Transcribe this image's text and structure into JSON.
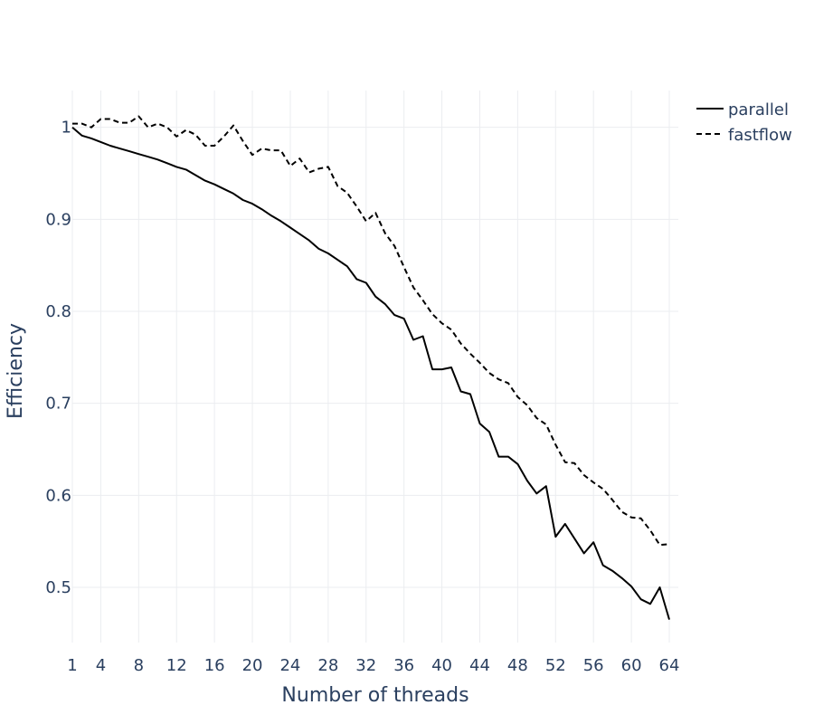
{
  "chart_data": {
    "type": "line",
    "xlabel": "Number of threads",
    "ylabel": "Efficiency",
    "x_tick_labels": [
      "1",
      "4",
      "8",
      "12",
      "16",
      "20",
      "24",
      "28",
      "32",
      "36",
      "40",
      "44",
      "48",
      "52",
      "56",
      "60",
      "64"
    ],
    "y_tick_labels": [
      "0.5",
      "0.6",
      "0.7",
      "0.8",
      "0.9",
      "1"
    ],
    "xlim": [
      1,
      64
    ],
    "ylim": [
      0.44,
      1.04
    ],
    "grid": true,
    "legend_position": "top-right",
    "series_color": "#000000",
    "x": [
      1,
      2,
      3,
      4,
      5,
      6,
      7,
      8,
      9,
      10,
      11,
      12,
      13,
      14,
      15,
      16,
      17,
      18,
      19,
      20,
      21,
      22,
      23,
      24,
      25,
      26,
      27,
      28,
      29,
      30,
      31,
      32,
      33,
      34,
      35,
      36,
      37,
      38,
      39,
      40,
      41,
      42,
      43,
      44,
      45,
      46,
      47,
      48,
      49,
      50,
      51,
      52,
      53,
      54,
      55,
      56,
      57,
      58,
      59,
      60,
      61,
      62,
      63,
      64
    ],
    "series": [
      {
        "name": "parallel",
        "dash": "solid",
        "values": [
          1.0,
          0.991,
          0.988,
          0.984,
          0.98,
          0.977,
          0.974,
          0.971,
          0.968,
          0.965,
          0.961,
          0.957,
          0.954,
          0.948,
          0.942,
          0.938,
          0.933,
          0.928,
          0.921,
          0.917,
          0.911,
          0.904,
          0.898,
          0.891,
          0.884,
          0.877,
          0.868,
          0.863,
          0.856,
          0.849,
          0.835,
          0.831,
          0.816,
          0.808,
          0.796,
          0.792,
          0.769,
          0.773,
          0.737,
          0.737,
          0.739,
          0.713,
          0.71,
          0.678,
          0.669,
          0.642,
          0.642,
          0.634,
          0.616,
          0.602,
          0.61,
          0.555,
          0.569,
          0.553,
          0.537,
          0.549,
          0.524,
          0.518,
          0.51,
          0.501,
          0.487,
          0.482,
          0.5,
          0.465
        ]
      },
      {
        "name": "fastflow",
        "dash": "dashed",
        "values": [
          1.004,
          1.004,
          1.0,
          1.009,
          1.009,
          1.005,
          1.005,
          1.012,
          1.0,
          1.004,
          1.0,
          0.99,
          0.997,
          0.992,
          0.98,
          0.98,
          0.99,
          1.002,
          0.985,
          0.97,
          0.977,
          0.975,
          0.975,
          0.958,
          0.966,
          0.951,
          0.955,
          0.957,
          0.936,
          0.929,
          0.914,
          0.898,
          0.907,
          0.885,
          0.871,
          0.848,
          0.826,
          0.812,
          0.797,
          0.787,
          0.78,
          0.765,
          0.754,
          0.744,
          0.733,
          0.726,
          0.722,
          0.707,
          0.698,
          0.684,
          0.677,
          0.655,
          0.636,
          0.635,
          0.622,
          0.614,
          0.607,
          0.595,
          0.582,
          0.576,
          0.575,
          0.562,
          0.546,
          0.547
        ]
      }
    ]
  }
}
